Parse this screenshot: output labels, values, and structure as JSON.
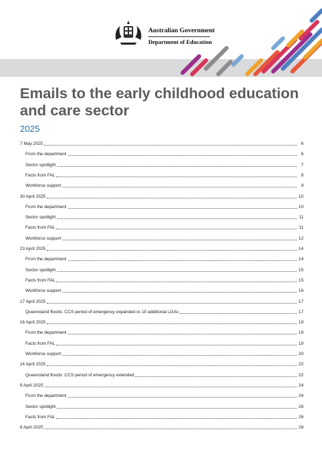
{
  "header": {
    "gov_name": "Australian Government",
    "dept_name": "Department of Education",
    "stripe_colors": [
      "#f0a32c",
      "#e8573a",
      "#d8355a",
      "#9b2f8c",
      "#4d7fc2",
      "#7aa8d6",
      "#8c8c8c"
    ]
  },
  "document": {
    "title": "Emails to the early childhood education and care sector",
    "year": "2025"
  },
  "toc": [
    {
      "label": "7 May 2025",
      "page": "6",
      "level": 1
    },
    {
      "label": "From the department",
      "page": "6",
      "level": 2
    },
    {
      "label": "Sector spotlight",
      "page": "7",
      "level": 2
    },
    {
      "label": "Facts from FAL",
      "page": "8",
      "level": 2
    },
    {
      "label": "Workforce support",
      "page": "9",
      "level": 2
    },
    {
      "label": "30 April 2025",
      "page": "10",
      "level": 1
    },
    {
      "label": "From the department",
      "page": "10",
      "level": 2
    },
    {
      "label": "Sector spotlight",
      "page": "11",
      "level": 2
    },
    {
      "label": "Facts from FAL",
      "page": "11",
      "level": 2
    },
    {
      "label": "Workforce support",
      "page": "12",
      "level": 2
    },
    {
      "label": "23 April 2025",
      "page": "14",
      "level": 1
    },
    {
      "label": "From the department",
      "page": "14",
      "level": 2
    },
    {
      "label": "Sector spotlight",
      "page": "15",
      "level": 2
    },
    {
      "label": "Facts from FAL",
      "page": "15",
      "level": 2
    },
    {
      "label": "Workforce support",
      "page": "16",
      "level": 2
    },
    {
      "label": "17 April 2025",
      "page": "17",
      "level": 1
    },
    {
      "label": "Queensland floods: CCS period of emergency expanded to 10 additional LGAs",
      "page": "17",
      "level": 2
    },
    {
      "label": "16 April 2025",
      "page": "19",
      "level": 1
    },
    {
      "label": "From the department",
      "page": "19",
      "level": 2
    },
    {
      "label": "Facts from FAL",
      "page": "19",
      "level": 2
    },
    {
      "label": "Workforce support",
      "page": "20",
      "level": 2
    },
    {
      "label": "14 April 2025",
      "page": "22",
      "level": 1
    },
    {
      "label": "Queensland floods: CCS period of emergency extended",
      "page": "22",
      "level": 2
    },
    {
      "label": "9 April 2025",
      "page": "24",
      "level": 1
    },
    {
      "label": "From the department",
      "page": "24",
      "level": 2
    },
    {
      "label": "Sector spotlight",
      "page": "26",
      "level": 2
    },
    {
      "label": "Facts from FAL",
      "page": "26",
      "level": 2
    },
    {
      "label": "8 April 2025",
      "page": "28",
      "level": 1
    }
  ]
}
